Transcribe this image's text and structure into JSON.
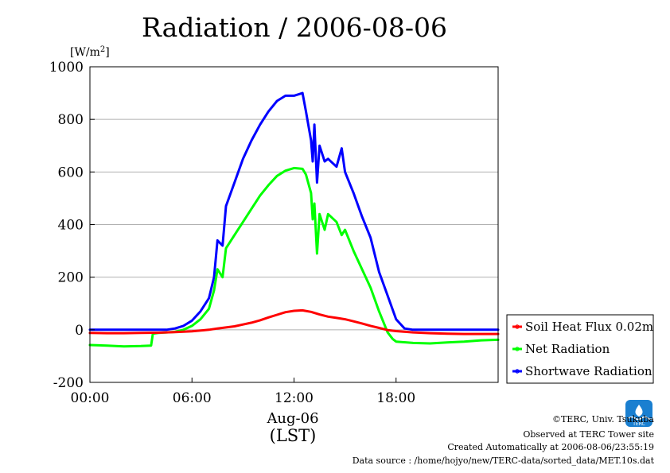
{
  "chart_data": {
    "type": "line",
    "title": "Radiation / 2006-08-06",
    "y_unit_prefix": "[W/m",
    "y_unit_sup": "2",
    "y_unit_suffix": "]",
    "ylim": [
      -200,
      1000
    ],
    "y_ticks": [
      -200,
      0,
      200,
      400,
      600,
      800,
      1000
    ],
    "x_unit": "hours (LST)",
    "xlim": [
      0,
      24
    ],
    "x_ticks": [
      {
        "value": 0,
        "label": "00:00"
      },
      {
        "value": 6,
        "label": "06:00"
      },
      {
        "value": 12,
        "label": "12:00"
      },
      {
        "value": 18,
        "label": "18:00"
      }
    ],
    "date_label": "Aug-06",
    "xlabel": "(LST)",
    "grid": true,
    "legend_position": "right",
    "series": [
      {
        "name": "Soil Heat Flux 0.02m",
        "color": "#ff0000",
        "points": [
          [
            0,
            -12
          ],
          [
            1,
            -13
          ],
          [
            2,
            -13
          ],
          [
            3,
            -12
          ],
          [
            4,
            -11
          ],
          [
            5,
            -9
          ],
          [
            6,
            -6
          ],
          [
            7,
            0
          ],
          [
            7.5,
            5
          ],
          [
            8,
            9
          ],
          [
            8.5,
            13
          ],
          [
            9,
            20
          ],
          [
            9.5,
            27
          ],
          [
            10,
            36
          ],
          [
            10.5,
            47
          ],
          [
            11,
            57
          ],
          [
            11.5,
            67
          ],
          [
            12,
            72
          ],
          [
            12.5,
            74
          ],
          [
            13,
            68
          ],
          [
            13.5,
            58
          ],
          [
            14,
            50
          ],
          [
            14.5,
            45
          ],
          [
            15,
            40
          ],
          [
            15.5,
            32
          ],
          [
            16,
            24
          ],
          [
            16.5,
            15
          ],
          [
            17,
            7
          ],
          [
            17.5,
            -1
          ],
          [
            18,
            -5
          ],
          [
            19,
            -10
          ],
          [
            20,
            -13
          ],
          [
            21,
            -15
          ],
          [
            22,
            -16
          ],
          [
            23,
            -16
          ],
          [
            24,
            -16
          ]
        ]
      },
      {
        "name": "Net Radiation",
        "color": "#00ff00",
        "points": [
          [
            0,
            -58
          ],
          [
            1,
            -60
          ],
          [
            2,
            -63
          ],
          [
            3,
            -62
          ],
          [
            3.6,
            -60
          ],
          [
            3.7,
            -15
          ],
          [
            4,
            -12
          ],
          [
            4.5,
            -10
          ],
          [
            5,
            -8
          ],
          [
            5.5,
            0
          ],
          [
            6,
            15
          ],
          [
            6.5,
            40
          ],
          [
            7,
            80
          ],
          [
            7.3,
            150
          ],
          [
            7.5,
            230
          ],
          [
            7.8,
            200
          ],
          [
            8,
            310
          ],
          [
            8.5,
            360
          ],
          [
            9,
            410
          ],
          [
            9.5,
            460
          ],
          [
            10,
            510
          ],
          [
            10.5,
            550
          ],
          [
            11,
            585
          ],
          [
            11.5,
            605
          ],
          [
            12,
            615
          ],
          [
            12.5,
            612
          ],
          [
            12.7,
            590
          ],
          [
            13,
            520
          ],
          [
            13.1,
            420
          ],
          [
            13.2,
            480
          ],
          [
            13.35,
            290
          ],
          [
            13.5,
            440
          ],
          [
            13.8,
            380
          ],
          [
            14,
            440
          ],
          [
            14.5,
            410
          ],
          [
            14.8,
            360
          ],
          [
            15,
            380
          ],
          [
            15.5,
            300
          ],
          [
            16,
            230
          ],
          [
            16.5,
            160
          ],
          [
            17,
            70
          ],
          [
            17.5,
            -10
          ],
          [
            17.8,
            -35
          ],
          [
            18,
            -45
          ],
          [
            19,
            -50
          ],
          [
            20,
            -52
          ],
          [
            21,
            -48
          ],
          [
            22,
            -45
          ],
          [
            23,
            -40
          ],
          [
            24,
            -38
          ]
        ]
      },
      {
        "name": "Shortwave Radiation",
        "color": "#0000ff",
        "points": [
          [
            0,
            0
          ],
          [
            1,
            0
          ],
          [
            2,
            0
          ],
          [
            3,
            0
          ],
          [
            4,
            0
          ],
          [
            4.5,
            0
          ],
          [
            5,
            5
          ],
          [
            5.5,
            15
          ],
          [
            6,
            35
          ],
          [
            6.5,
            70
          ],
          [
            7,
            120
          ],
          [
            7.3,
            200
          ],
          [
            7.5,
            340
          ],
          [
            7.8,
            320
          ],
          [
            8,
            470
          ],
          [
            8.5,
            560
          ],
          [
            9,
            650
          ],
          [
            9.5,
            720
          ],
          [
            10,
            780
          ],
          [
            10.5,
            830
          ],
          [
            11,
            870
          ],
          [
            11.5,
            890
          ],
          [
            12,
            890
          ],
          [
            12.5,
            900
          ],
          [
            12.7,
            830
          ],
          [
            13,
            720
          ],
          [
            13.1,
            640
          ],
          [
            13.2,
            780
          ],
          [
            13.35,
            560
          ],
          [
            13.5,
            700
          ],
          [
            13.8,
            640
          ],
          [
            14,
            650
          ],
          [
            14.5,
            620
          ],
          [
            14.8,
            690
          ],
          [
            15,
            600
          ],
          [
            15.5,
            520
          ],
          [
            16,
            430
          ],
          [
            16.5,
            350
          ],
          [
            17,
            220
          ],
          [
            17.5,
            130
          ],
          [
            18,
            40
          ],
          [
            18.5,
            5
          ],
          [
            19,
            0
          ],
          [
            20,
            0
          ],
          [
            21,
            0
          ],
          [
            22,
            0
          ],
          [
            23,
            0
          ],
          [
            24,
            0
          ]
        ]
      }
    ]
  },
  "footer": {
    "copyright": "©TERC, Univ. Tsukuba",
    "site": "Observed at TERC Tower site",
    "created": "Created Automatically at 2006-08-06/23:55:19",
    "source": "Data source : /home/hojyo/new/TERC-data/sorted_data/MET.10s.dat"
  },
  "logo": {
    "text": "TERC",
    "color": "#1a7fd0"
  }
}
